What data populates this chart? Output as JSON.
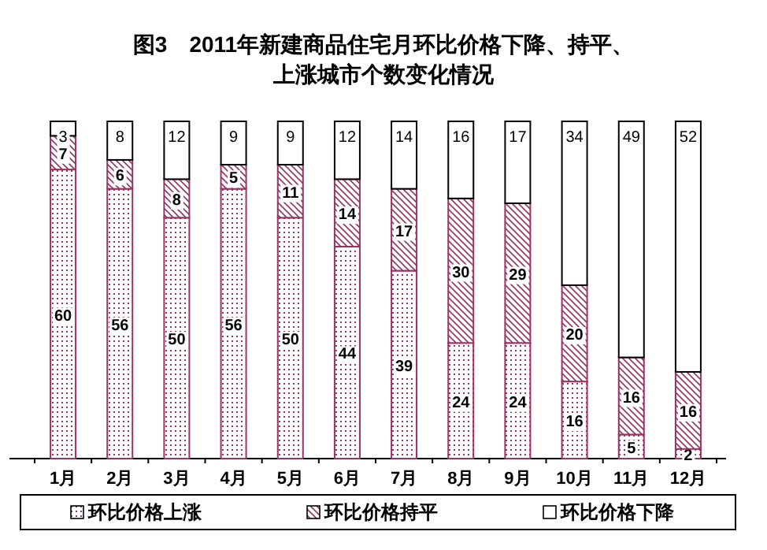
{
  "chart_data": {
    "type": "bar",
    "stacked": true,
    "title": "图3　2011年新建商品住宅月环比价格下降、持平、上涨城市个数变化情况",
    "categories": [
      "1月",
      "2月",
      "3月",
      "4月",
      "5月",
      "6月",
      "7月",
      "8月",
      "9月",
      "10月",
      "11月",
      "12月"
    ],
    "series": [
      {
        "name": "环比价格上涨",
        "color": "#993366",
        "values": [
          60,
          56,
          50,
          56,
          50,
          44,
          39,
          24,
          24,
          16,
          5,
          2
        ]
      },
      {
        "name": "环比价格持平",
        "color": "#993366",
        "values": [
          7,
          6,
          8,
          5,
          11,
          14,
          17,
          30,
          29,
          20,
          16,
          16
        ]
      },
      {
        "name": "环比价格下降",
        "color": "#ffffff",
        "values": [
          3,
          8,
          12,
          9,
          9,
          12,
          14,
          16,
          17,
          34,
          49,
          52
        ]
      }
    ],
    "data_labels": true,
    "legend": "bottom"
  }
}
